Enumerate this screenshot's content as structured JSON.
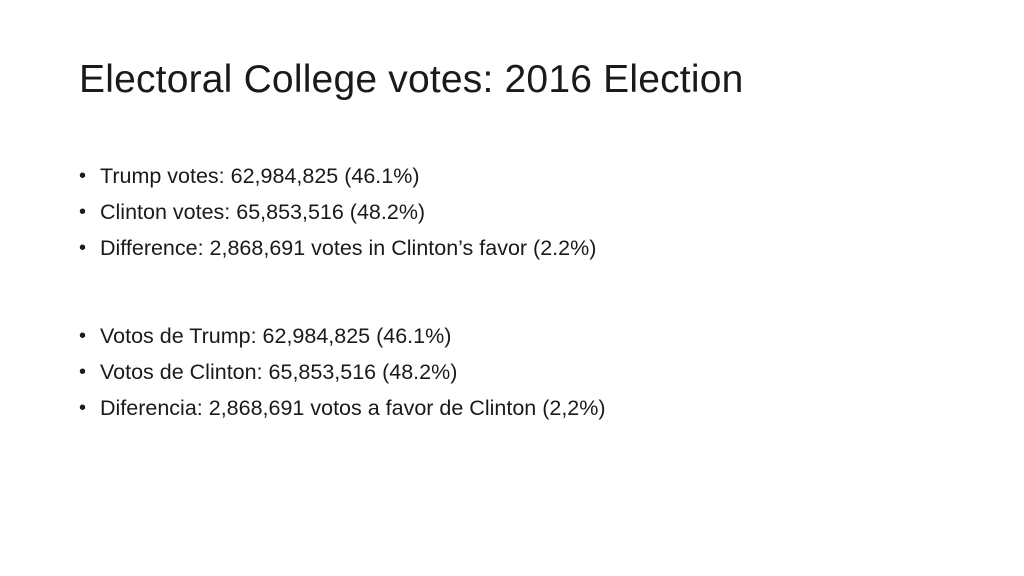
{
  "slide": {
    "title": "Electoral College votes: 2016 Election",
    "bullets_english": [
      "Trump votes: 62,984,825 (46.1%)",
      "Clinton votes: 65,853,516 (48.2%)",
      "Difference: 2,868,691 votes in Clinton’s favor (2.2%)"
    ],
    "bullets_spanish": [
      "Votos de Trump: 62,984,825 (46.1%)",
      "Votos de Clinton: 65,853,516 (48.2%)",
      "Diferencia: 2,868,691 votos a favor de Clinton (2,2%)"
    ]
  }
}
